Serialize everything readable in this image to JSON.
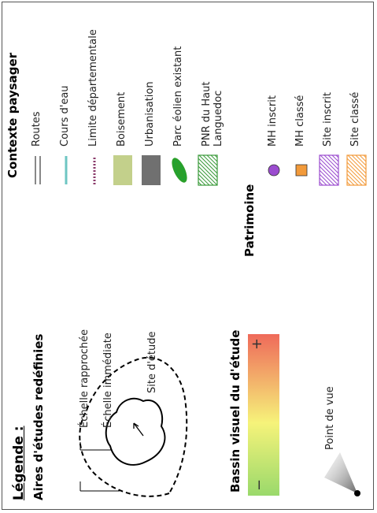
{
  "title": "Légende :",
  "aires": {
    "heading": "Aires d'études redéfinies",
    "items": [
      "Échelle rapprochée",
      "Échelle immédiate",
      "Site d'étude"
    ]
  },
  "bassin": {
    "heading": "Bassin visuel du d'étude",
    "plus": "+",
    "minus": "−",
    "colors": [
      "#9ad96b",
      "#f6f37a",
      "#ef6a5a"
    ]
  },
  "point_de_vue": "Point de vue",
  "contexte": {
    "heading": "Contexte paysager",
    "items": [
      {
        "symbol": "routes",
        "label": "Routes",
        "color": "#888888"
      },
      {
        "symbol": "cours",
        "label": "Cours d'eau",
        "color": "#6ec6c3"
      },
      {
        "symbol": "limite",
        "label": "Limite départementale",
        "color": "#8a3a6a"
      },
      {
        "symbol": "boisement",
        "label": "Boisement",
        "color": "#c3d08b"
      },
      {
        "symbol": "urbanisation",
        "label": "Urbanisation",
        "color": "#707070"
      },
      {
        "symbol": "parc",
        "label": "Parc éolien existant",
        "color": "#2aa02a"
      },
      {
        "symbol": "pnr",
        "label": "PNR du Haut\nLanguedoc",
        "color": "#3a9a3a"
      }
    ]
  },
  "patrimoine": {
    "heading": "Patrimoine",
    "items": [
      {
        "symbol": "mh-inscrit",
        "label": "MH inscrit",
        "color": "#9b4ccf"
      },
      {
        "symbol": "mh-classe",
        "label": "MH classé",
        "color": "#f29a3a"
      },
      {
        "symbol": "site-inscrit",
        "label": "Site inscrit",
        "color": "#9b4ccf"
      },
      {
        "symbol": "site-classe",
        "label": "Site classé",
        "color": "#f29a3a"
      }
    ]
  }
}
